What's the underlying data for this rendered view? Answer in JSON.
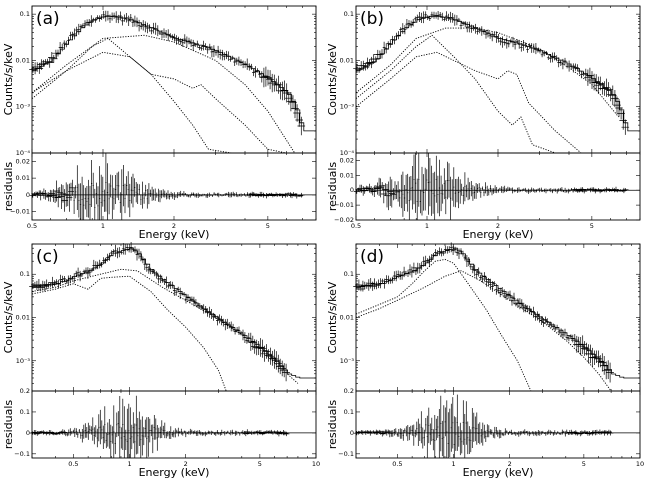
{
  "chart_data": [
    {
      "panel": "(a)",
      "type": "line",
      "xlabel": "Energy (keV)",
      "ylabel_top": "Counts/s/keV",
      "ylabel_bottom": "residuals",
      "xscale": "log",
      "yscale_top": "log",
      "xlim": [
        0.5,
        8
      ],
      "ylim_top": [
        0.0001,
        0.15
      ],
      "ylim_bottom": [
        -0.015,
        0.025
      ],
      "x_ticks": [
        "0.5",
        "1",
        "2",
        "5"
      ],
      "y_ticks_top": [
        "0.1",
        "0.01",
        "10⁻³",
        "10⁻⁴"
      ],
      "y_ticks_bottom": [
        "0.02",
        "0.01",
        "0",
        "−0.01"
      ],
      "model_spectrum": {
        "x": [
          0.5,
          0.6,
          0.7,
          0.8,
          0.9,
          1.0,
          1.1,
          1.3,
          1.6,
          2.0,
          2.5,
          3.0,
          4.0,
          5.0,
          6.0,
          6.5,
          7.0,
          8.0
        ],
        "y": [
          0.006,
          0.01,
          0.025,
          0.05,
          0.075,
          0.09,
          0.09,
          0.075,
          0.05,
          0.03,
          0.022,
          0.016,
          0.008,
          0.004,
          0.002,
          0.001,
          0.0003,
          0.0003
        ]
      },
      "components": [
        {
          "x": [
            0.5,
            0.7,
            1.0,
            1.5,
            2.0,
            3.0,
            4.0,
            5.0,
            6.5
          ],
          "y": [
            0.002,
            0.008,
            0.03,
            0.035,
            0.025,
            0.01,
            0.003,
            0.0008,
            0.0001
          ]
        },
        {
          "x": [
            0.5,
            0.7,
            0.9,
            1.05,
            1.3,
            1.6,
            2.0,
            2.4,
            2.8,
            3.5,
            4.2
          ],
          "y": [
            0.0015,
            0.006,
            0.02,
            0.03,
            0.012,
            0.005,
            0.0013,
            0.0004,
            0.00012,
            4e-05,
            2e-05
          ]
        },
        {
          "x": [
            0.5,
            0.7,
            1.0,
            1.3,
            1.6,
            2.0,
            2.4,
            2.6,
            3.0,
            4.0,
            5.0,
            6.0
          ],
          "y": [
            0.002,
            0.006,
            0.015,
            0.012,
            0.005,
            0.004,
            0.0025,
            0.003,
            0.0015,
            0.0004,
            0.00012,
            5e-05
          ]
        }
      ]
    },
    {
      "panel": "(b)",
      "type": "line",
      "xlabel": "Energy (keV)",
      "ylabel_top": "Counts/s/keV",
      "ylabel_bottom": "residuals",
      "xscale": "log",
      "yscale_top": "log",
      "xlim": [
        0.5,
        8
      ],
      "ylim_top": [
        0.0001,
        0.15
      ],
      "ylim_bottom": [
        -0.02,
        0.025
      ],
      "x_ticks": [
        "0.5",
        "1",
        "2",
        "5"
      ],
      "y_ticks_top": [
        "0.1",
        "0.01",
        "10⁻³",
        "10⁻⁴"
      ],
      "y_ticks_bottom": [
        "0.02",
        "0.01",
        "0",
        "−0.01",
        "−0.02"
      ],
      "model_spectrum": {
        "x": [
          0.5,
          0.6,
          0.7,
          0.8,
          0.9,
          1.0,
          1.1,
          1.3,
          1.6,
          2.0,
          2.5,
          3.0,
          4.0,
          5.0,
          6.0,
          6.5,
          7.0,
          8.0
        ],
        "y": [
          0.006,
          0.01,
          0.025,
          0.05,
          0.075,
          0.09,
          0.09,
          0.075,
          0.05,
          0.03,
          0.022,
          0.016,
          0.008,
          0.004,
          0.002,
          0.001,
          0.0003,
          0.0003
        ]
      },
      "components": [
        {
          "x": [
            0.5,
            0.7,
            0.9,
            1.2,
            1.6,
            2.0,
            3.0,
            4.0,
            5.0,
            6.5
          ],
          "y": [
            0.002,
            0.008,
            0.03,
            0.05,
            0.05,
            0.04,
            0.018,
            0.007,
            0.003,
            0.0006
          ]
        },
        {
          "x": [
            0.5,
            0.7,
            0.9,
            1.05,
            1.3,
            1.6,
            2.0,
            2.3,
            2.5,
            2.8,
            3.5,
            4.5
          ],
          "y": [
            0.0015,
            0.006,
            0.02,
            0.035,
            0.012,
            0.004,
            0.0008,
            0.0004,
            0.0006,
            0.00015,
            4e-05,
            1e-05
          ]
        },
        {
          "x": [
            0.5,
            0.7,
            0.9,
            1.1,
            1.6,
            2.0,
            2.2,
            2.4,
            2.7,
            3.5,
            4.5,
            5.5
          ],
          "y": [
            0.001,
            0.004,
            0.012,
            0.015,
            0.006,
            0.004,
            0.006,
            0.005,
            0.0012,
            0.0003,
            0.0001,
            4e-05
          ]
        }
      ]
    },
    {
      "panel": "(c)",
      "type": "line",
      "xlabel": "Energy (keV)",
      "ylabel_top": "Counts/s/keV",
      "ylabel_bottom": "residuals",
      "xscale": "log",
      "yscale_top": "log",
      "xlim": [
        0.3,
        10
      ],
      "ylim_top": [
        0.0002,
        0.5
      ],
      "ylim_bottom": [
        -0.12,
        0.2
      ],
      "x_ticks": [
        "0.5",
        "1",
        "2",
        "5",
        "10"
      ],
      "y_ticks_top": [
        "0.1",
        "0.01",
        "10⁻³"
      ],
      "y_ticks_bottom": [
        "0.2",
        "0.1",
        "0",
        "−0.1"
      ],
      "model_spectrum": {
        "x": [
          0.3,
          0.4,
          0.5,
          0.6,
          0.7,
          0.8,
          0.9,
          1.0,
          1.1,
          1.3,
          1.6,
          2.0,
          2.5,
          3.0,
          4.0,
          5.0,
          6.0,
          7.0,
          8.0
        ],
        "y": [
          0.05,
          0.06,
          0.09,
          0.12,
          0.18,
          0.3,
          0.35,
          0.4,
          0.3,
          0.12,
          0.06,
          0.03,
          0.015,
          0.009,
          0.004,
          0.002,
          0.001,
          0.0005,
          0.0004
        ]
      },
      "components": [
        {
          "x": [
            0.3,
            0.4,
            0.5,
            0.7,
            0.9,
            1.1,
            1.5,
            2.0,
            3.0,
            4.0,
            5.0,
            6.0,
            8.0
          ],
          "y": [
            0.04,
            0.05,
            0.07,
            0.1,
            0.13,
            0.12,
            0.05,
            0.025,
            0.009,
            0.004,
            0.0018,
            0.0009,
            0.0003
          ]
        },
        {
          "x": [
            0.3,
            0.4,
            0.5,
            0.6,
            0.7,
            0.8,
            1.0,
            1.3,
            1.6,
            2.0,
            2.5,
            3.0,
            3.3
          ],
          "y": [
            0.035,
            0.045,
            0.06,
            0.045,
            0.08,
            0.085,
            0.09,
            0.04,
            0.015,
            0.006,
            0.002,
            0.0006,
            0.0002
          ]
        }
      ]
    },
    {
      "panel": "(d)",
      "type": "line",
      "xlabel": "Energy (keV)",
      "ylabel_top": "Counts/s/keV",
      "ylabel_bottom": "residuals",
      "xscale": "log",
      "yscale_top": "log",
      "xlim": [
        0.3,
        10
      ],
      "ylim_top": [
        0.0002,
        0.5
      ],
      "ylim_bottom": [
        -0.12,
        0.2
      ],
      "x_ticks": [
        "0.5",
        "1",
        "2",
        "5",
        "10"
      ],
      "y_ticks_top": [
        "0.1",
        "0.01",
        "10⁻³"
      ],
      "y_ticks_bottom": [
        "0.2",
        "0.1",
        "0",
        "−0.1"
      ],
      "model_spectrum": {
        "x": [
          0.3,
          0.4,
          0.5,
          0.6,
          0.7,
          0.8,
          0.9,
          1.0,
          1.1,
          1.3,
          1.6,
          2.0,
          2.5,
          3.0,
          4.0,
          5.0,
          6.0,
          7.0,
          8.0
        ],
        "y": [
          0.05,
          0.06,
          0.09,
          0.12,
          0.18,
          0.3,
          0.35,
          0.4,
          0.3,
          0.12,
          0.06,
          0.03,
          0.015,
          0.009,
          0.004,
          0.002,
          0.001,
          0.0005,
          0.0004
        ]
      },
      "components": [
        {
          "x": [
            0.3,
            0.4,
            0.5,
            0.7,
            0.9,
            1.1,
            1.4,
            2.0,
            3.0,
            4.0,
            5.0,
            6.0,
            7.0
          ],
          "y": [
            0.01,
            0.016,
            0.025,
            0.05,
            0.09,
            0.12,
            0.07,
            0.025,
            0.008,
            0.003,
            0.0012,
            0.0005,
            0.0002
          ]
        },
        {
          "x": [
            0.3,
            0.4,
            0.5,
            0.6,
            0.7,
            0.8,
            0.9,
            1.0,
            1.2,
            1.5,
            1.8,
            2.2,
            2.6
          ],
          "y": [
            0.012,
            0.02,
            0.03,
            0.06,
            0.12,
            0.2,
            0.22,
            0.18,
            0.06,
            0.015,
            0.004,
            0.001,
            0.0002
          ]
        }
      ]
    }
  ]
}
